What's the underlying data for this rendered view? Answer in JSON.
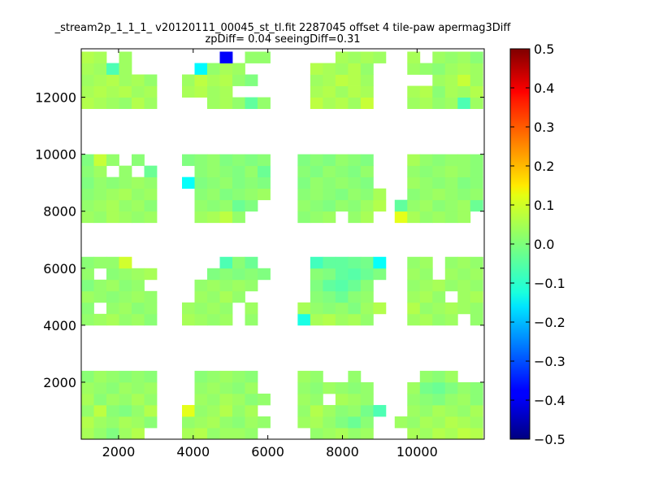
{
  "chart_data": {
    "type": "heatmap",
    "title_line1": "_stream2p_1_1_1_ v20120111_00045_st_tl.fit 2287045 offset 4 tile-paw apermag3Diff",
    "title_line2": "zpDiff= 0.04 seeingDiff=0.31",
    "xlim": [
      1000,
      11800
    ],
    "ylim": [
      0,
      13700
    ],
    "x_ticks": [
      2000,
      4000,
      6000,
      8000,
      10000
    ],
    "y_ticks": [
      2000,
      4000,
      6000,
      8000,
      10000,
      12000
    ],
    "x_tick_labels": [
      "2000",
      "4000",
      "6000",
      "8000",
      "10000"
    ],
    "y_tick_labels": [
      "2000",
      "4000",
      "6000",
      "8000",
      "10000",
      "12000"
    ],
    "colorbar": {
      "range": [
        -0.5,
        0.5
      ],
      "colormap": "jet",
      "ticks": [
        0.5,
        0.4,
        0.3,
        0.2,
        0.1,
        0.0,
        -0.1,
        -0.2,
        -0.3,
        -0.4,
        -0.5
      ],
      "tick_labels": [
        "0.5",
        "0.4",
        "0.3",
        "0.2",
        "0.1",
        "0.0",
        "−0.1",
        "−0.2",
        "−0.3",
        "−0.4",
        "−0.5"
      ]
    },
    "cell_size": {
      "dx": 337.5,
      "dy": 400
    },
    "blocks": [
      {
        "x_cells": [
          1000,
          1337.5,
          1675,
          2012.5,
          2350,
          2687.5
        ],
        "y_cells": [
          0,
          400,
          800,
          1200,
          1600,
          2000
        ],
        "values": [
          [
            0.04,
            0.02,
            0.0,
            0.03,
            0.05,
            null
          ],
          [
            0.05,
            0.03,
            0.02,
            0.04,
            0.03,
            0.01
          ],
          [
            0.02,
            0.06,
            0.01,
            0.0,
            0.02,
            0.05
          ],
          [
            0.04,
            0.01,
            0.03,
            0.02,
            0.04,
            0.02
          ],
          [
            0.03,
            0.02,
            0.01,
            0.03,
            0.02,
            0.03
          ],
          [
            0.01,
            0.03,
            0.02,
            0.01,
            0.02,
            0.01
          ]
        ]
      },
      {
        "x_cells": [
          1000,
          1337.5,
          1675,
          2012.5,
          2350,
          2687.5
        ],
        "y_cells": [
          4000,
          4400,
          4800,
          5200,
          5600,
          6000
        ],
        "values": [
          [
            0.02,
            0.03,
            0.04,
            0.02,
            0.03,
            0.01
          ],
          [
            0.01,
            null,
            0.02,
            0.03,
            0.01,
            0.02
          ],
          [
            0.03,
            0.02,
            0.01,
            0.02,
            0.03,
            0.02
          ],
          [
            0.0,
            0.02,
            0.03,
            0.01,
            0.02,
            null
          ],
          [
            0.02,
            null,
            0.01,
            0.02,
            0.03,
            0.04
          ],
          [
            0.01,
            0.02,
            0.02,
            0.08,
            null,
            null
          ]
        ]
      },
      {
        "x_cells": [
          1000,
          1337.5,
          1675,
          2012.5,
          2350,
          2687.5
        ],
        "y_cells": [
          7600,
          8000,
          8400,
          8800,
          9200,
          9600
        ],
        "values": [
          [
            0.03,
            0.02,
            0.04,
            0.03,
            0.02,
            0.03
          ],
          [
            0.02,
            0.03,
            0.04,
            0.02,
            0.03,
            0.01
          ],
          [
            0.01,
            0.02,
            0.03,
            0.04,
            0.02,
            0.03
          ],
          [
            0.0,
            0.02,
            0.01,
            0.02,
            0.03,
            0.02
          ],
          [
            0.01,
            0.03,
            null,
            0.02,
            null,
            -0.02
          ],
          [
            0.0,
            0.07,
            0.02,
            null,
            0.01,
            null
          ]
        ]
      },
      {
        "x_cells": [
          1000,
          1337.5,
          1675,
          2012.5,
          2350,
          2687.5
        ],
        "y_cells": [
          11600,
          12000,
          12400,
          12800,
          13200
        ],
        "values": [
          [
            0.05,
            0.04,
            0.03,
            0.02,
            0.05,
            0.03
          ],
          [
            0.04,
            0.05,
            0.04,
            0.05,
            0.03,
            0.04
          ],
          [
            0.03,
            0.04,
            0.05,
            0.03,
            0.04,
            0.02
          ],
          [
            0.04,
            0.03,
            -0.05,
            0.03,
            null,
            null
          ],
          [
            0.05,
            0.04,
            null,
            0.03,
            null,
            null
          ]
        ]
      },
      {
        "x_cells": [
          3700,
          4037.5,
          4375,
          4712.5,
          5050,
          5387.5,
          5725
        ],
        "y_cells": [
          0,
          400,
          800,
          1200,
          1600,
          2000
        ],
        "values": [
          [
            0.04,
            0.05,
            0.02,
            0.03,
            0.03,
            0.02,
            null
          ],
          [
            0.02,
            0.03,
            0.04,
            0.02,
            0.01,
            0.03,
            0.02
          ],
          [
            0.1,
            0.02,
            0.03,
            0.05,
            0.02,
            0.04,
            null
          ],
          [
            null,
            0.03,
            0.02,
            0.04,
            0.03,
            0.01,
            0.02
          ],
          [
            null,
            0.02,
            0.03,
            0.02,
            0.01,
            0.03,
            null
          ],
          [
            null,
            0.01,
            0.02,
            0.03,
            0.02,
            0.01,
            null
          ]
        ]
      },
      {
        "x_cells": [
          3700,
          4037.5,
          4375,
          4712.5,
          5050,
          5387.5,
          5725
        ],
        "y_cells": [
          4000,
          4400,
          4800,
          5200,
          5600,
          6000
        ],
        "values": [
          [
            0.04,
            0.03,
            0.02,
            0.03,
            null,
            0.02,
            null
          ],
          [
            0.03,
            0.02,
            0.03,
            0.02,
            null,
            0.03,
            null
          ],
          [
            null,
            0.03,
            0.02,
            0.04,
            0.02,
            null,
            null
          ],
          [
            null,
            0.02,
            0.03,
            0.02,
            0.03,
            0.02,
            null
          ],
          [
            null,
            null,
            0.0,
            0.01,
            0.0,
            0.01,
            0.0
          ],
          [
            null,
            null,
            null,
            -0.05,
            0.01,
            -0.02,
            null
          ]
        ]
      },
      {
        "x_cells": [
          3700,
          4037.5,
          4375,
          4712.5,
          5050,
          5387.5,
          5725
        ],
        "y_cells": [
          7600,
          8000,
          8400,
          8800,
          9200,
          9600
        ],
        "values": [
          [
            null,
            0.03,
            0.04,
            0.06,
            0.02,
            null,
            null
          ],
          [
            null,
            0.02,
            0.01,
            0.02,
            -0.02,
            0.0,
            null
          ],
          [
            null,
            0.01,
            0.02,
            0.0,
            0.01,
            0.02,
            0.03
          ],
          [
            -0.12,
            0.0,
            0.01,
            0.02,
            0.0,
            0.01,
            0.0
          ],
          [
            null,
            0.01,
            0.02,
            0.01,
            0.0,
            0.02,
            -0.02
          ],
          [
            0.0,
            0.01,
            0.02,
            0.0,
            0.01,
            0.0,
            0.01
          ]
        ]
      },
      {
        "x_cells": [
          3700,
          4037.5,
          4375,
          4712.5,
          5050,
          5387.5,
          5725
        ],
        "y_cells": [
          11600,
          12000,
          12400,
          12800,
          13200
        ],
        "values": [
          [
            null,
            null,
            0.03,
            0.04,
            0.02,
            -0.03,
            0.02
          ],
          [
            0.04,
            0.05,
            0.03,
            0.04,
            null,
            null,
            null
          ],
          [
            0.03,
            0.06,
            0.04,
            0.05,
            0.02,
            0.0,
            null
          ],
          [
            null,
            -0.13,
            0.02,
            0.04,
            0.03,
            null,
            null
          ],
          [
            null,
            null,
            null,
            -0.38,
            null,
            0.02,
            0.02
          ]
        ]
      },
      {
        "x_cells": [
          6800,
          7137.5,
          7475,
          7812.5,
          8150,
          8487.5,
          8825
        ],
        "y_cells": [
          0,
          400,
          800,
          1200,
          1600,
          2000
        ],
        "values": [
          [
            null,
            0.02,
            0.03,
            0.04,
            0.02,
            0.03,
            null
          ],
          [
            0.03,
            0.04,
            0.02,
            0.0,
            -0.02,
            0.01,
            null
          ],
          [
            0.02,
            0.05,
            0.03,
            0.01,
            0.02,
            -0.01,
            -0.05
          ],
          [
            0.03,
            0.02,
            null,
            0.04,
            0.03,
            0.02,
            null
          ],
          [
            0.02,
            0.01,
            0.03,
            0.02,
            0.01,
            0.02,
            null
          ],
          [
            0.03,
            0.02,
            null,
            null,
            0.02,
            null,
            null
          ]
        ]
      },
      {
        "x_cells": [
          6800,
          7137.5,
          7475,
          7812.5,
          8150,
          8487.5,
          8825
        ],
        "y_cells": [
          4000,
          4400,
          4800,
          5200,
          5600,
          6000
        ],
        "values": [
          [
            -0.1,
            0.04,
            0.05,
            0.03,
            0.04,
            0.02,
            null
          ],
          [
            0.04,
            0.02,
            0.01,
            0.02,
            0.0,
            0.03,
            0.05
          ],
          [
            null,
            0.01,
            0.0,
            -0.02,
            0.01,
            0.02,
            null
          ],
          [
            null,
            0.0,
            -0.03,
            -0.04,
            -0.02,
            0.01,
            null
          ],
          [
            null,
            0.01,
            0.0,
            -0.03,
            -0.04,
            -0.02,
            0.0
          ],
          [
            null,
            -0.06,
            -0.03,
            -0.03,
            -0.02,
            -0.01,
            -0.12
          ]
        ]
      },
      {
        "x_cells": [
          6800,
          7137.5,
          7475,
          7812.5,
          8150,
          8487.5,
          8825
        ],
        "y_cells": [
          7600,
          8000,
          8400,
          8800,
          9200,
          9600
        ],
        "values": [
          [
            0.01,
            0.02,
            0.03,
            null,
            0.02,
            0.04,
            null
          ],
          [
            0.02,
            0.01,
            0.0,
            0.02,
            0.01,
            0.03,
            0.05
          ],
          [
            0.01,
            0.02,
            0.01,
            0.0,
            0.02,
            0.01,
            0.04
          ],
          [
            0.0,
            0.02,
            0.01,
            0.02,
            0.01,
            0.0,
            null
          ],
          [
            0.01,
            0.0,
            0.02,
            0.01,
            0.0,
            0.02,
            null
          ],
          [
            0.0,
            0.01,
            0.0,
            0.02,
            0.01,
            0.0,
            null
          ]
        ]
      },
      {
        "x_cells": [
          6800,
          7137.5,
          7475,
          7812.5,
          8150,
          8487.5,
          8825
        ],
        "y_cells": [
          11600,
          12000,
          12400,
          12800,
          13200
        ],
        "values": [
          [
            null,
            0.06,
            0.04,
            0.05,
            0.03,
            0.07,
            null
          ],
          [
            null,
            0.04,
            0.05,
            0.03,
            0.05,
            0.04,
            null
          ],
          [
            null,
            0.03,
            0.04,
            0.06,
            0.05,
            0.03,
            null
          ],
          [
            null,
            0.05,
            0.04,
            0.03,
            0.05,
            0.02,
            null
          ],
          [
            null,
            null,
            null,
            0.04,
            0.03,
            0.04,
            0.03
          ]
        ]
      },
      {
        "x_cells": [
          9400,
          9737.5,
          10075,
          10412.5,
          10750,
          11087.5,
          11425
        ],
        "y_cells": [
          0,
          400,
          800,
          1200,
          1600,
          2000
        ],
        "values": [
          [
            null,
            0.04,
            0.03,
            0.05,
            0.04,
            0.06,
            0.05
          ],
          [
            0.03,
            0.02,
            0.04,
            0.03,
            0.05,
            0.04,
            0.03
          ],
          [
            null,
            0.03,
            0.02,
            0.04,
            0.03,
            0.02,
            0.04
          ],
          [
            null,
            0.02,
            0.01,
            0.0,
            0.02,
            0.03,
            0.01
          ],
          [
            null,
            0.03,
            -0.01,
            -0.02,
            0.0,
            0.02,
            0.01
          ],
          [
            null,
            null,
            0.02,
            0.01,
            0.03,
            null,
            null
          ]
        ]
      },
      {
        "x_cells": [
          9400,
          9737.5,
          10075,
          10412.5,
          10750,
          11087.5,
          11425
        ],
        "y_cells": [
          4000,
          4400,
          4800,
          5200,
          5600,
          6000
        ],
        "values": [
          [
            null,
            0.03,
            0.04,
            0.02,
            0.03,
            null,
            0.02
          ],
          [
            null,
            0.05,
            0.02,
            0.03,
            0.04,
            0.03,
            0.02
          ],
          [
            null,
            0.03,
            0.04,
            0.02,
            null,
            0.03,
            0.04
          ],
          [
            null,
            0.02,
            0.03,
            0.04,
            0.02,
            0.03,
            0.02
          ],
          [
            null,
            0.03,
            0.02,
            null,
            0.03,
            0.02,
            0.03
          ],
          [
            null,
            0.02,
            0.03,
            null,
            0.02,
            0.03,
            0.02
          ]
        ]
      },
      {
        "x_cells": [
          9400,
          9737.5,
          10075,
          10412.5,
          10750,
          11087.5,
          11425
        ],
        "y_cells": [
          7600,
          8000,
          8400,
          8800,
          9200,
          9600
        ],
        "values": [
          [
            0.1,
            0.04,
            0.02,
            0.03,
            0.02,
            0.03,
            null
          ],
          [
            -0.03,
            0.02,
            0.03,
            0.01,
            0.02,
            0.03,
            -0.02
          ],
          [
            null,
            0.01,
            0.02,
            0.03,
            0.02,
            0.01,
            0.02
          ],
          [
            null,
            0.03,
            0.02,
            0.01,
            0.02,
            0.0,
            0.01
          ],
          [
            null,
            0.02,
            0.01,
            0.02,
            0.03,
            0.02,
            0.01
          ],
          [
            null,
            0.04,
            0.02,
            0.01,
            0.02,
            0.02,
            0.01
          ]
        ]
      },
      {
        "x_cells": [
          9400,
          9737.5,
          10075,
          10412.5,
          10750,
          11087.5,
          11425
        ],
        "y_cells": [
          11600,
          12000,
          12400,
          12800,
          13200
        ],
        "values": [
          [
            null,
            0.03,
            0.04,
            0.02,
            0.03,
            -0.05,
            0.03
          ],
          [
            null,
            0.04,
            0.05,
            0.01,
            0.04,
            0.03,
            0.05
          ],
          [
            null,
            null,
            null,
            0.03,
            0.04,
            0.07,
            0.03
          ],
          [
            null,
            0.03,
            0.02,
            0.01,
            0.03,
            0.04,
            0.03
          ],
          [
            null,
            0.04,
            null,
            0.03,
            0.02,
            0.03,
            0.01
          ]
        ]
      }
    ]
  }
}
